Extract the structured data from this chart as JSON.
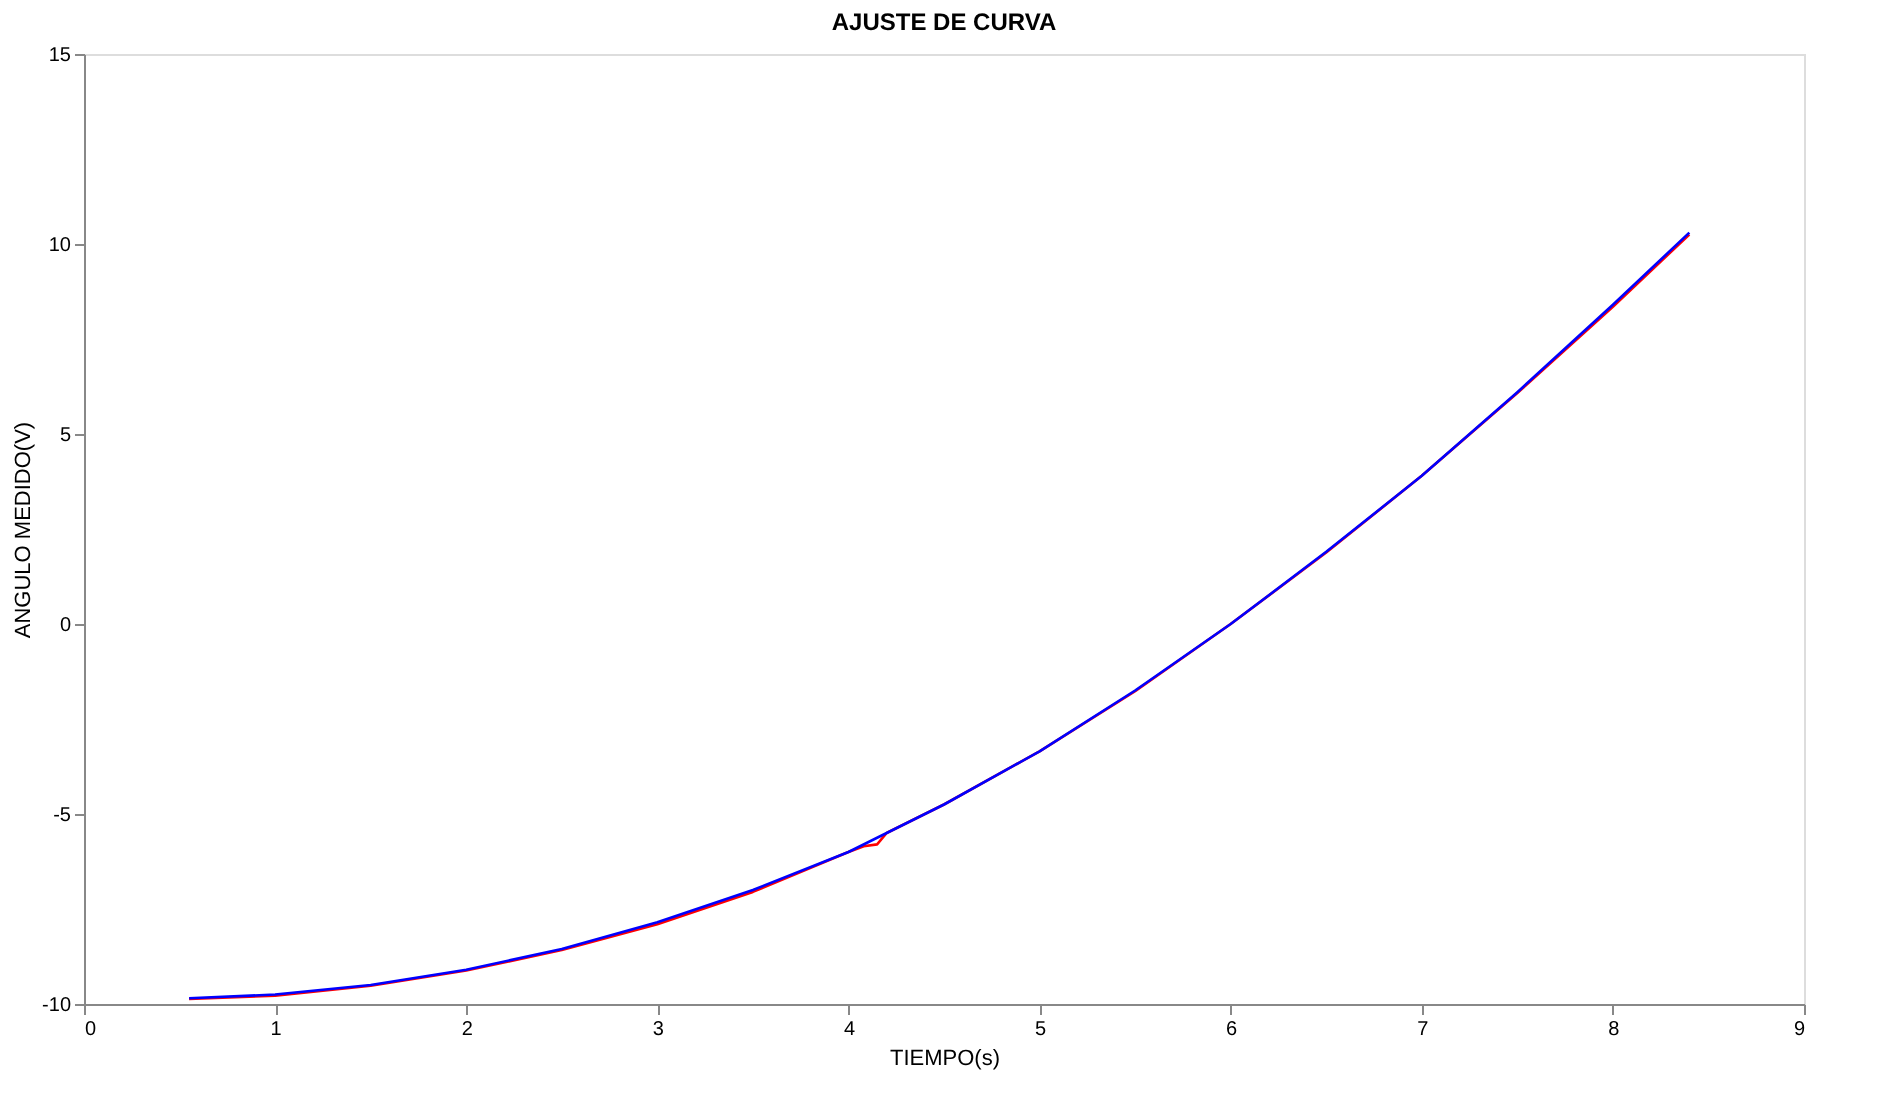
{
  "chart_data": {
    "type": "line",
    "title": "AJUSTE DE CURVA",
    "xlabel": "TIEMPO(s)",
    "ylabel": "ANGULO MEDIDO(V)",
    "xlim": [
      0,
      9
    ],
    "ylim": [
      -10,
      15
    ],
    "xticks": [
      0,
      1,
      2,
      3,
      4,
      5,
      6,
      7,
      8,
      9
    ],
    "yticks": [
      -10,
      -5,
      0,
      5,
      10,
      15
    ],
    "grid": false,
    "line_style": "solid",
    "marker": "none",
    "series": [
      {
        "color": "#ff0000",
        "x": [
          0.55,
          1,
          1.5,
          2,
          2.5,
          3,
          3.5,
          4,
          4.08,
          4.15,
          4.2,
          4.5,
          5,
          5.5,
          6,
          6.5,
          7,
          7.5,
          8,
          8.4
        ],
        "values": [
          -9.87,
          -9.78,
          -9.52,
          -9.12,
          -8.58,
          -7.9,
          -7.05,
          -6.0,
          -5.85,
          -5.8,
          -5.5,
          -4.75,
          -3.35,
          -1.77,
          0.0,
          1.88,
          3.9,
          6.08,
          8.35,
          10.25
        ]
      },
      {
        "color": "#0000ff",
        "x": [
          0.55,
          1,
          1.5,
          2,
          2.5,
          3,
          3.5,
          4,
          4.5,
          5,
          5.5,
          6,
          6.5,
          7,
          7.5,
          8,
          8.4
        ],
        "values": [
          -9.85,
          -9.75,
          -9.5,
          -9.1,
          -8.55,
          -7.85,
          -7.0,
          -6.0,
          -4.75,
          -3.35,
          -1.75,
          0.0,
          1.9,
          3.9,
          6.1,
          8.4,
          10.3
        ]
      }
    ]
  }
}
